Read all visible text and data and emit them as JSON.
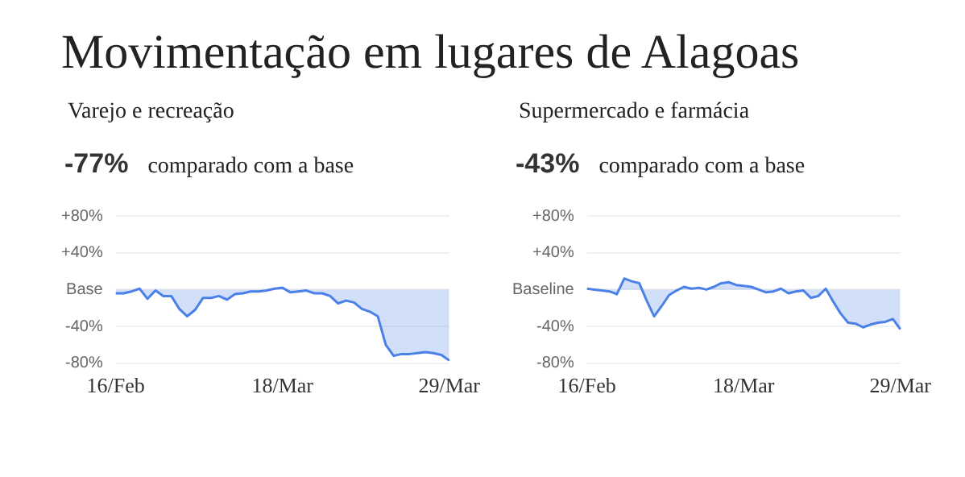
{
  "chart_data": [
    {
      "type": "area",
      "title": "Movimentação em lugares de Alagoas",
      "subtitle": "Varejo e recreação",
      "annotations": [
        "-77%",
        "comparado com a base"
      ],
      "categories": [
        "16/Feb",
        null,
        null,
        null,
        null,
        null,
        null,
        null,
        null,
        null,
        null,
        null,
        null,
        null,
        null,
        null,
        null,
        null,
        null,
        null,
        null,
        "18/Mar",
        null,
        null,
        null,
        null,
        null,
        null,
        null,
        null,
        null,
        null,
        null,
        null,
        null,
        null,
        null,
        null,
        null,
        null,
        null,
        null,
        "29/Mar"
      ],
      "series": [
        {
          "color": "#4a80e8",
          "values": [
            -4,
            -4,
            -2,
            1,
            -10,
            -1,
            -7,
            -7,
            -21,
            -29,
            -22,
            -9,
            -9,
            -7,
            -11,
            -5,
            -4,
            -2,
            -2,
            -1,
            1,
            2,
            -3,
            -2,
            -1,
            -4,
            -4,
            -7,
            -15,
            -12,
            -14,
            -21,
            -24,
            -29,
            -60,
            -72,
            -70,
            -70,
            -69,
            -68,
            -69,
            -71,
            -77
          ]
        }
      ],
      "ylim": [
        -80,
        80
      ],
      "yticks": [
        {
          "value": -80,
          "label": "-80%"
        },
        {
          "value": -40,
          "label": "-40%"
        },
        {
          "value": 0,
          "label": "Base"
        },
        {
          "value": 40,
          "label": "+40%"
        },
        {
          "value": 80,
          "label": "+80%"
        }
      ],
      "grid": "y",
      "marker": "none"
    },
    {
      "type": "area",
      "subtitle": "Supermercado e farmácia",
      "annotations": [
        "-43%",
        "comparado com a base"
      ],
      "categories": [
        "16/Feb",
        null,
        null,
        null,
        null,
        null,
        null,
        null,
        null,
        null,
        null,
        null,
        null,
        null,
        null,
        null,
        null,
        null,
        null,
        null,
        null,
        "18/Mar",
        null,
        null,
        null,
        null,
        null,
        null,
        null,
        null,
        null,
        null,
        null,
        null,
        null,
        null,
        null,
        null,
        null,
        null,
        null,
        null,
        "29/Mar"
      ],
      "series": [
        {
          "color": "#4a80e8",
          "values": [
            1,
            0,
            -1,
            -2,
            -5,
            12,
            9,
            7,
            -12,
            -29,
            -18,
            -6,
            -1,
            3,
            1,
            2,
            0,
            3,
            7,
            8,
            5,
            4,
            3,
            0,
            -3,
            -2,
            1,
            -4,
            -2,
            -1,
            -9,
            -7,
            1,
            -13,
            -26,
            -36,
            -37,
            -41,
            -38,
            -36,
            -35,
            -32,
            -43
          ]
        }
      ],
      "ylim": [
        -80,
        80
      ],
      "yticks": [
        {
          "value": -80,
          "label": "-80%"
        },
        {
          "value": -40,
          "label": "-40%"
        },
        {
          "value": 0,
          "label": "Baseline"
        },
        {
          "value": 40,
          "label": "+40%"
        },
        {
          "value": 80,
          "label": "+80%"
        }
      ],
      "grid": "y",
      "marker": "none"
    }
  ]
}
